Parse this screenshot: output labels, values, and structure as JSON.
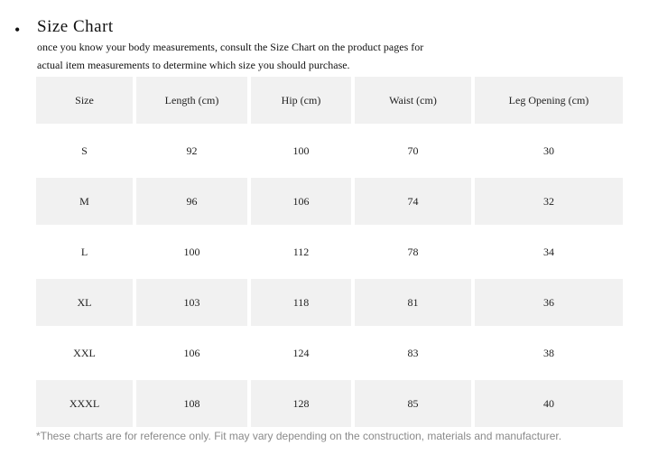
{
  "header": {
    "bullet": "•",
    "title": "Size  Chart",
    "intro_line1": "once you know your body measurements, consult the Size Chart on the product pages for",
    "intro_line2": "actual item measurements to determine which size you should purchase."
  },
  "table": {
    "columns": [
      "Size",
      "Length (cm)",
      "Hip (cm)",
      "Waist (cm)",
      "Leg Opening (cm)"
    ],
    "rows": [
      [
        "S",
        "92",
        "100",
        "70",
        "30"
      ],
      [
        "M",
        "96",
        "106",
        "74",
        "32"
      ],
      [
        "L",
        "100",
        "112",
        "78",
        "34"
      ],
      [
        "XL",
        "103",
        "118",
        "81",
        "36"
      ],
      [
        "XXL",
        "106",
        "124",
        "83",
        "38"
      ],
      [
        "XXXL",
        "108",
        "128",
        "85",
        "40"
      ]
    ]
  },
  "footnote": "*These charts are for reference only. Fit may vary depending on the construction, materials and manufacturer."
}
